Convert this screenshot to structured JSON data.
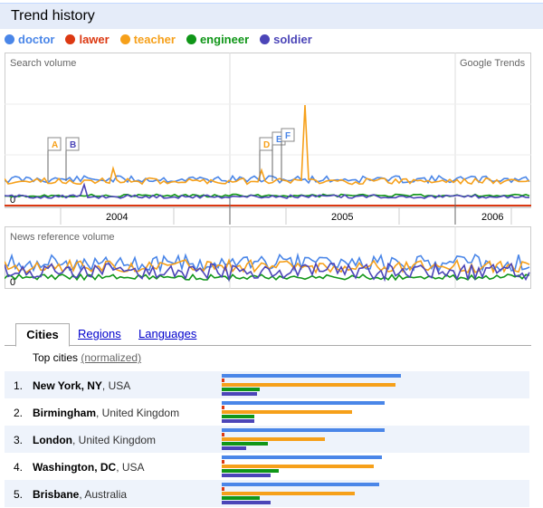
{
  "header": {
    "title": "Trend history"
  },
  "legend": [
    {
      "label": "doctor",
      "color": "#4a86e8"
    },
    {
      "label": "lawer",
      "color": "#dc3912"
    },
    {
      "label": "teacher",
      "color": "#f6a01a"
    },
    {
      "label": "engineer",
      "color": "#109618"
    },
    {
      "label": "soldier",
      "color": "#4b45b8"
    }
  ],
  "chart": {
    "search_label": "Search volume",
    "watermark": "Google Trends",
    "news_label": "News reference volume",
    "zero_label": "0",
    "years": [
      "2004",
      "2005",
      "2006"
    ],
    "markers": [
      {
        "letter": "A",
        "color": "#f6a01a"
      },
      {
        "letter": "B",
        "color": "#4b45b8"
      },
      {
        "letter": "D",
        "color": "#f6a01a"
      },
      {
        "letter": "E",
        "color": "#4a86e8"
      },
      {
        "letter": "F",
        "color": "#4a86e8"
      }
    ]
  },
  "tabs": {
    "cities": "Cities",
    "regions": "Regions",
    "languages": "Languages"
  },
  "top_cities": {
    "label": "Top cities",
    "normalized": "(normalized)"
  },
  "cities": [
    {
      "rank": "1.",
      "city": "New York, NY",
      "country": ", USA",
      "values": {
        "doctor": 0.66,
        "lawer": 0.01,
        "teacher": 0.64,
        "engineer": 0.14,
        "soldier": 0.13
      }
    },
    {
      "rank": "2.",
      "city": "Birmingham",
      "country": ", United Kingdom",
      "values": {
        "doctor": 0.6,
        "lawer": 0.01,
        "teacher": 0.48,
        "engineer": 0.12,
        "soldier": 0.12
      }
    },
    {
      "rank": "3.",
      "city": "London",
      "country": ", United Kingdom",
      "values": {
        "doctor": 0.6,
        "lawer": 0.01,
        "teacher": 0.38,
        "engineer": 0.17,
        "soldier": 0.09
      }
    },
    {
      "rank": "4.",
      "city": "Washington, DC",
      "country": ", USA",
      "values": {
        "doctor": 0.59,
        "lawer": 0.01,
        "teacher": 0.56,
        "engineer": 0.21,
        "soldier": 0.18
      }
    },
    {
      "rank": "5.",
      "city": "Brisbane",
      "country": ", Australia",
      "values": {
        "doctor": 0.58,
        "lawer": 0.01,
        "teacher": 0.49,
        "engineer": 0.14,
        "soldier": 0.18
      }
    }
  ]
}
